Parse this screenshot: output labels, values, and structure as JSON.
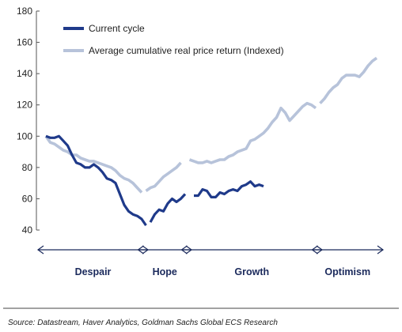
{
  "chart_data": {
    "type": "line",
    "title": "",
    "xlabel": "",
    "ylabel": "",
    "ylim": [
      40,
      180
    ],
    "yticks": [
      "40",
      "60",
      "80",
      "100",
      "120",
      "140",
      "160",
      "180"
    ],
    "legend_position": "top-left",
    "grid": false,
    "colors": {
      "current": "#1f3a8a",
      "average": "#b7c3da",
      "arrow": "#1b2a5c"
    },
    "series": [
      {
        "name": "Current cycle",
        "segments": [
          [
            [
              0,
              100
            ],
            [
              1,
              99
            ],
            [
              2,
              99
            ],
            [
              3,
              100
            ],
            [
              4,
              97
            ],
            [
              5,
              94
            ],
            [
              6,
              88
            ],
            [
              7,
              83
            ],
            [
              8,
              82
            ],
            [
              9,
              80
            ],
            [
              10,
              80
            ],
            [
              11,
              82
            ],
            [
              12,
              80
            ],
            [
              13,
              77
            ],
            [
              14,
              73
            ],
            [
              15,
              72
            ],
            [
              16,
              70
            ],
            [
              17,
              63
            ],
            [
              18,
              56
            ],
            [
              19,
              52
            ],
            [
              20,
              50
            ],
            [
              21,
              49
            ],
            [
              22,
              47
            ],
            [
              23,
              43
            ]
          ],
          [
            [
              24,
              45
            ],
            [
              25,
              50
            ],
            [
              26,
              53
            ],
            [
              27,
              52
            ],
            [
              28,
              57
            ],
            [
              29,
              60
            ],
            [
              30,
              58
            ],
            [
              31,
              60
            ],
            [
              32,
              63
            ]
          ],
          [
            [
              34,
              62
            ],
            [
              35,
              62
            ],
            [
              36,
              66
            ],
            [
              37,
              65
            ],
            [
              38,
              61
            ],
            [
              39,
              61
            ],
            [
              40,
              64
            ],
            [
              41,
              63
            ],
            [
              42,
              65
            ],
            [
              43,
              66
            ],
            [
              44,
              65
            ],
            [
              45,
              68
            ],
            [
              46,
              69
            ],
            [
              47,
              71
            ],
            [
              48,
              68
            ],
            [
              49,
              69
            ],
            [
              50,
              68
            ]
          ]
        ]
      },
      {
        "name": "Average cumulative real price return (Indexed)",
        "segments": [
          [
            [
              0,
              100
            ],
            [
              1,
              96
            ],
            [
              2,
              95
            ],
            [
              3,
              93
            ],
            [
              4,
              91
            ],
            [
              5,
              90
            ],
            [
              6,
              88
            ],
            [
              7,
              88
            ],
            [
              8,
              86
            ],
            [
              9,
              85
            ],
            [
              10,
              84
            ],
            [
              11,
              84
            ],
            [
              12,
              83
            ],
            [
              13,
              82
            ],
            [
              14,
              81
            ],
            [
              15,
              80
            ],
            [
              16,
              78
            ],
            [
              17,
              75
            ],
            [
              18,
              73
            ],
            [
              19,
              72
            ],
            [
              20,
              70
            ],
            [
              21,
              67
            ],
            [
              22,
              64
            ]
          ],
          [
            [
              23,
              65
            ],
            [
              24,
              67
            ],
            [
              25,
              68
            ],
            [
              26,
              71
            ],
            [
              27,
              74
            ],
            [
              28,
              76
            ],
            [
              29,
              78
            ],
            [
              30,
              80
            ],
            [
              31,
              83
            ]
          ],
          [
            [
              33,
              85
            ],
            [
              34,
              84
            ],
            [
              35,
              83
            ],
            [
              36,
              83
            ],
            [
              37,
              84
            ],
            [
              38,
              83
            ],
            [
              39,
              84
            ],
            [
              40,
              85
            ],
            [
              41,
              85
            ],
            [
              42,
              87
            ],
            [
              43,
              88
            ],
            [
              44,
              90
            ],
            [
              45,
              91
            ],
            [
              46,
              92
            ],
            [
              47,
              97
            ],
            [
              48,
              98
            ],
            [
              49,
              100
            ],
            [
              50,
              102
            ],
            [
              51,
              105
            ],
            [
              52,
              109
            ],
            [
              53,
              112
            ],
            [
              54,
              118
            ],
            [
              55,
              115
            ],
            [
              56,
              110
            ],
            [
              57,
              113
            ],
            [
              58,
              116
            ],
            [
              59,
              119
            ],
            [
              60,
              121
            ],
            [
              61,
              120
            ],
            [
              62,
              118
            ]
          ],
          [
            [
              63,
              121
            ],
            [
              64,
              124
            ],
            [
              65,
              128
            ],
            [
              66,
              131
            ],
            [
              67,
              133
            ],
            [
              68,
              137
            ],
            [
              69,
              139
            ],
            [
              70,
              139
            ],
            [
              71,
              139
            ],
            [
              72,
              138
            ],
            [
              73,
              141
            ],
            [
              74,
              145
            ],
            [
              75,
              148
            ],
            [
              76,
              150
            ]
          ]
        ]
      }
    ],
    "phases": [
      {
        "label": "Despair",
        "start": 0,
        "end": 22
      },
      {
        "label": "Hope",
        "start": 23,
        "end": 32
      },
      {
        "label": "Growth",
        "start": 33,
        "end": 62
      },
      {
        "label": "Optimism",
        "start": 63,
        "end": 76
      }
    ],
    "source": "Source: Datastream, Haver Analytics, Goldman Sachs Global ECS Research"
  }
}
